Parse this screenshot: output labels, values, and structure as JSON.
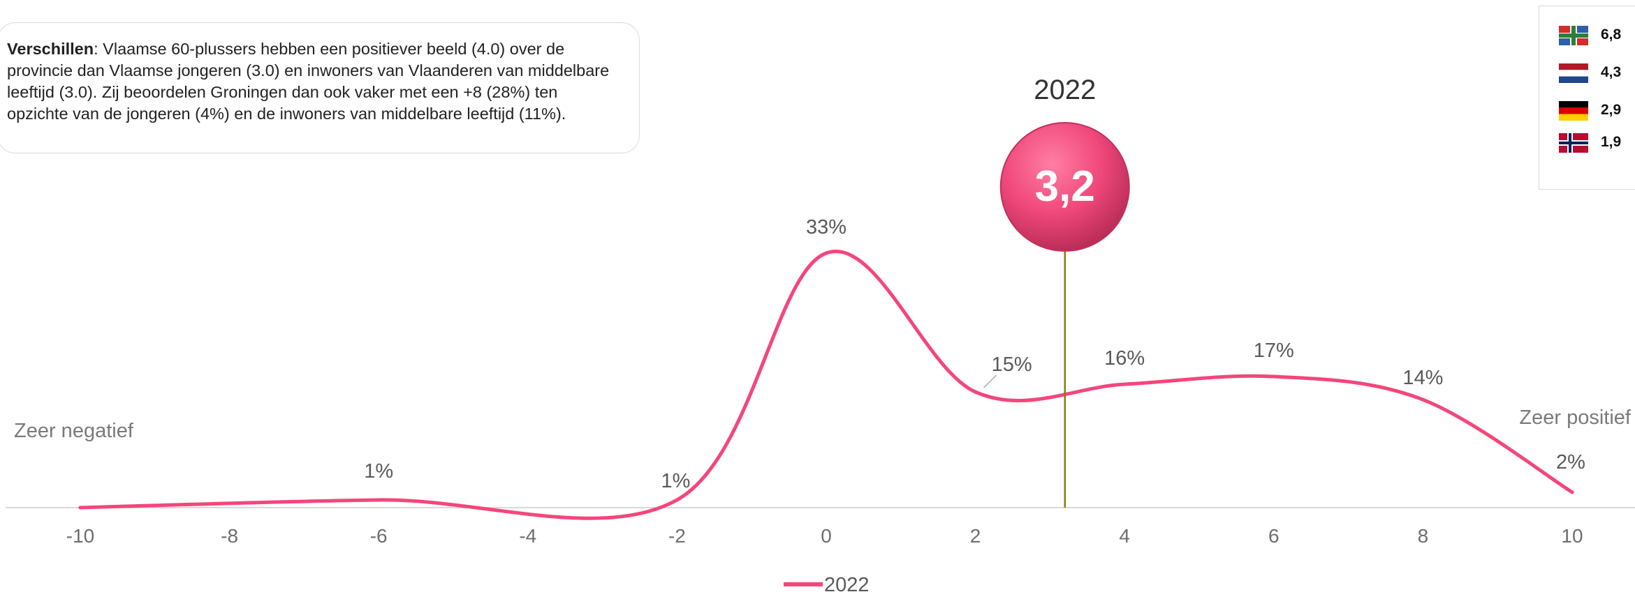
{
  "note": {
    "bold": "Verschillen",
    "text": ": Vlaamse 60-plussers hebben een positiever beeld (4.0) over de provincie dan Vlaamse jongeren (3.0) en inwoners van Vlaanderen van middelbare leeftijd (3.0). Zij beoordelen Groningen dan ook vaker met een +8 (28%) ten opzichte van de jongeren (4%) en de inwoners van middelbare leeftijd (11%)."
  },
  "flags": [
    {
      "name": "groningen-flag-icon",
      "value": "6,8"
    },
    {
      "name": "netherlands-flag-icon",
      "value": "4,3"
    },
    {
      "name": "germany-flag-icon",
      "value": "2,9"
    },
    {
      "name": "norway-flag-icon",
      "value": "1,9"
    }
  ],
  "colors": {
    "series": "#f4467a",
    "marker_line": "#8a7a10",
    "bubble": "#f0487a",
    "axis_text": "#6e6e6e"
  },
  "chart_data": {
    "type": "line",
    "x": [
      -10,
      -6,
      -2,
      0,
      2,
      4,
      6,
      8,
      10
    ],
    "labels": [
      "",
      "1%",
      "1%",
      "33%",
      "15%",
      "16%",
      "17%",
      "14%",
      "2%"
    ],
    "values": [
      0,
      1,
      1,
      33,
      15,
      16,
      17,
      14,
      2
    ],
    "xticks": [
      "-10",
      "-8",
      "-6",
      "-4",
      "-2",
      "0",
      "2",
      "4",
      "6",
      "8",
      "10"
    ],
    "xlim": [
      -10,
      10
    ],
    "ylim": [
      0,
      33
    ],
    "series": [
      {
        "name": "2022",
        "color": "#f4467a"
      }
    ],
    "left_label": "Zeer negatief",
    "right_label": "Zeer positief",
    "marker": {
      "year": "2022",
      "value": "3,2",
      "x": 3.2
    },
    "grid": false,
    "legend": "bottom-center"
  }
}
